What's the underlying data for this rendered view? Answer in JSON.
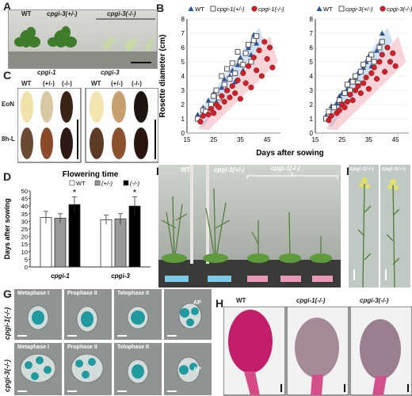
{
  "panels": {
    "A": {
      "letter": "A",
      "labels": [
        "WT",
        "cpgi-3(+/-)",
        "cpgi-3(-/-)"
      ]
    },
    "B": {
      "letter": "B"
    },
    "C": {
      "letter": "C",
      "col_titles": [
        "cpgi-1",
        "cpgi-3"
      ],
      "col_heads": [
        "WT",
        "(+/-)",
        "(-/-)",
        "WT",
        "(+/-)",
        "(-/-)"
      ],
      "row_labels": [
        "EoN",
        "8h-L"
      ]
    },
    "D": {
      "letter": "D"
    },
    "E": {
      "letter": "E",
      "labels": [
        "WT",
        "cpgi-1(+/-)",
        "cpgi-1(-/-)"
      ]
    },
    "F": {
      "letter": "F",
      "labels": [
        "cpgi-1(-/-)",
        "cpgi-3(-/-)"
      ]
    },
    "G": {
      "letter": "G",
      "row_labels": [
        "cpgi-1(-/-)",
        "cpgi-3(-/-)"
      ],
      "row1": [
        "Metaphase I",
        "Prophase II",
        "Telophase II",
        "AP"
      ],
      "row2": [
        "Metaphase I",
        "Prophase II",
        "Telophase II",
        "AP"
      ]
    },
    "H": {
      "letter": "H",
      "labels": [
        "WT",
        "cpgi-1(-/-)",
        "cpgi-3(-/-)"
      ]
    }
  },
  "chart_data": [
    {
      "type": "scatter",
      "xlabel": "Days after sowing",
      "ylabel": "Rosette diameter (cm)",
      "xlim": [
        15,
        50
      ],
      "ylim": [
        0,
        8
      ],
      "xticks": [
        15,
        25,
        35,
        45
      ],
      "yticks": [
        0,
        1,
        2,
        3,
        4,
        5,
        6,
        7,
        8
      ],
      "legend": [
        "WT",
        "cpgi-1(+/-)",
        "cpgi-1(-/-)"
      ],
      "series": [
        {
          "name": "WT",
          "color": "#2f5597",
          "marker": "triangle",
          "points": [
            [
              19,
              1.3
            ],
            [
              21,
              1.8
            ],
            [
              23,
              2.3
            ],
            [
              24,
              1.9
            ],
            [
              25,
              2.8
            ],
            [
              26,
              2.2
            ],
            [
              28,
              3.2
            ],
            [
              29,
              3.8
            ],
            [
              30,
              3.0
            ],
            [
              31,
              4.0
            ],
            [
              32,
              4.4
            ],
            [
              33,
              3.6
            ],
            [
              34,
              4.8
            ],
            [
              35,
              5.3
            ],
            [
              36,
              4.4
            ],
            [
              38,
              6.0
            ],
            [
              39,
              5.5
            ],
            [
              40,
              6.9
            ],
            [
              41,
              6.3
            ]
          ]
        },
        {
          "name": "cpgi-1(+/-)",
          "color": "#555555",
          "marker": "square",
          "points": [
            [
              19,
              1.0
            ],
            [
              21,
              1.6
            ],
            [
              22,
              1.5
            ],
            [
              24,
              2.0
            ],
            [
              25,
              2.6
            ],
            [
              26,
              3.0
            ],
            [
              27,
              2.5
            ],
            [
              28,
              4.0
            ],
            [
              29,
              3.4
            ],
            [
              30,
              4.5
            ],
            [
              31,
              3.8
            ],
            [
              32,
              4.9
            ],
            [
              33,
              4.2
            ],
            [
              34,
              5.7
            ],
            [
              35,
              5.0
            ],
            [
              36,
              4.8
            ],
            [
              37,
              5.6
            ],
            [
              38,
              6.2
            ],
            [
              39,
              5.0
            ],
            [
              40,
              6.5
            ],
            [
              41,
              6.8
            ]
          ]
        },
        {
          "name": "cpgi-1(-/-)",
          "color": "#d0202a",
          "marker": "circle",
          "points": [
            [
              20,
              0.8
            ],
            [
              21,
              1.2
            ],
            [
              23,
              1.3
            ],
            [
              24,
              1.7
            ],
            [
              25,
              1.4
            ],
            [
              26,
              2.0
            ],
            [
              27,
              1.8
            ],
            [
              28,
              2.6
            ],
            [
              29,
              2.2
            ],
            [
              30,
              3.0
            ],
            [
              31,
              2.5
            ],
            [
              32,
              3.3
            ],
            [
              33,
              2.8
            ],
            [
              34,
              3.7
            ],
            [
              35,
              2.4
            ],
            [
              36,
              4.2
            ],
            [
              37,
              3.5
            ],
            [
              38,
              4.7
            ],
            [
              39,
              3.2
            ],
            [
              40,
              5.3
            ],
            [
              41,
              4.4
            ],
            [
              42,
              5.8
            ],
            [
              43,
              4.0
            ],
            [
              44,
              6.4
            ],
            [
              45,
              5.2
            ],
            [
              46,
              6.0
            ],
            [
              47,
              4.6
            ]
          ]
        }
      ]
    },
    {
      "type": "scatter",
      "xlabel": "",
      "ylabel": "",
      "xlim": [
        15,
        50
      ],
      "ylim": [
        0,
        8
      ],
      "xticks": [
        15,
        25,
        35,
        45
      ],
      "yticks": [
        0,
        1,
        2,
        3,
        4,
        5,
        6,
        7,
        8
      ],
      "legend": [
        "WT",
        "cpgi-3(+/-)",
        "cpgi-3(-/-)"
      ],
      "series": [
        {
          "name": "WT",
          "color": "#2f5597",
          "marker": "triangle",
          "points": [
            [
              19,
              1.2
            ],
            [
              21,
              1.9
            ],
            [
              23,
              2.1
            ],
            [
              24,
              2.6
            ],
            [
              25,
              2.8
            ],
            [
              27,
              3.1
            ],
            [
              28,
              3.7
            ],
            [
              30,
              3.9
            ],
            [
              31,
              4.2
            ],
            [
              33,
              4.6
            ],
            [
              34,
              5.0
            ],
            [
              35,
              5.4
            ],
            [
              36,
              4.7
            ],
            [
              38,
              5.8
            ],
            [
              39,
              6.2
            ],
            [
              40,
              7.0
            ]
          ]
        },
        {
          "name": "cpgi-3(+/-)",
          "color": "#555555",
          "marker": "square",
          "points": [
            [
              19,
              1.0
            ],
            [
              20,
              1.5
            ],
            [
              22,
              1.8
            ],
            [
              24,
              2.3
            ],
            [
              25,
              2.0
            ],
            [
              26,
              2.8
            ],
            [
              27,
              3.4
            ],
            [
              28,
              3.0
            ],
            [
              29,
              3.6
            ],
            [
              30,
              4.0
            ],
            [
              31,
              3.5
            ],
            [
              32,
              4.3
            ],
            [
              33,
              4.8
            ],
            [
              35,
              5.2
            ],
            [
              36,
              5.5
            ],
            [
              37,
              5.0
            ],
            [
              39,
              6.0
            ],
            [
              40,
              6.4
            ]
          ]
        },
        {
          "name": "cpgi-3(-/-)",
          "color": "#d0202a",
          "marker": "circle",
          "points": [
            [
              20,
              0.9
            ],
            [
              21,
              1.2
            ],
            [
              23,
              1.4
            ],
            [
              24,
              1.6
            ],
            [
              25,
              2.0
            ],
            [
              26,
              1.8
            ],
            [
              27,
              2.2
            ],
            [
              28,
              2.7
            ],
            [
              29,
              2.3
            ],
            [
              30,
              3.0
            ],
            [
              31,
              3.3
            ],
            [
              32,
              2.8
            ],
            [
              33,
              3.5
            ],
            [
              34,
              3.9
            ],
            [
              35,
              3.1
            ],
            [
              36,
              4.2
            ],
            [
              37,
              4.6
            ],
            [
              38,
              3.8
            ],
            [
              39,
              5.0
            ],
            [
              40,
              5.5
            ],
            [
              41,
              4.3
            ],
            [
              42,
              6.0
            ],
            [
              43,
              5.0
            ],
            [
              44,
              5.6
            ],
            [
              45,
              4.7
            ]
          ]
        }
      ]
    },
    {
      "type": "bar",
      "title": "Flowering time",
      "ylabel": "Days after sowing",
      "ylim": [
        0,
        50
      ],
      "yticks": [
        0,
        5,
        10,
        15,
        20,
        25,
        30,
        35,
        40,
        45,
        50
      ],
      "categories": [
        "cpgi-1",
        "cpgi-3"
      ],
      "legend": [
        "WT",
        "(+/-)",
        "(-/-)"
      ],
      "series": [
        {
          "name": "WT",
          "color": "#ffffff",
          "values": [
            32.5,
            31.0
          ],
          "errors": [
            4.0,
            3.0
          ]
        },
        {
          "name": "(+/-)",
          "color": "#999999",
          "values": [
            32.0,
            31.5
          ],
          "errors": [
            3.0,
            3.5
          ]
        },
        {
          "name": "(-/-)",
          "color": "#000000",
          "values": [
            41.0,
            40.0
          ],
          "errors": [
            5.0,
            6.0
          ]
        }
      ],
      "annotations": [
        "*",
        "*"
      ]
    }
  ]
}
